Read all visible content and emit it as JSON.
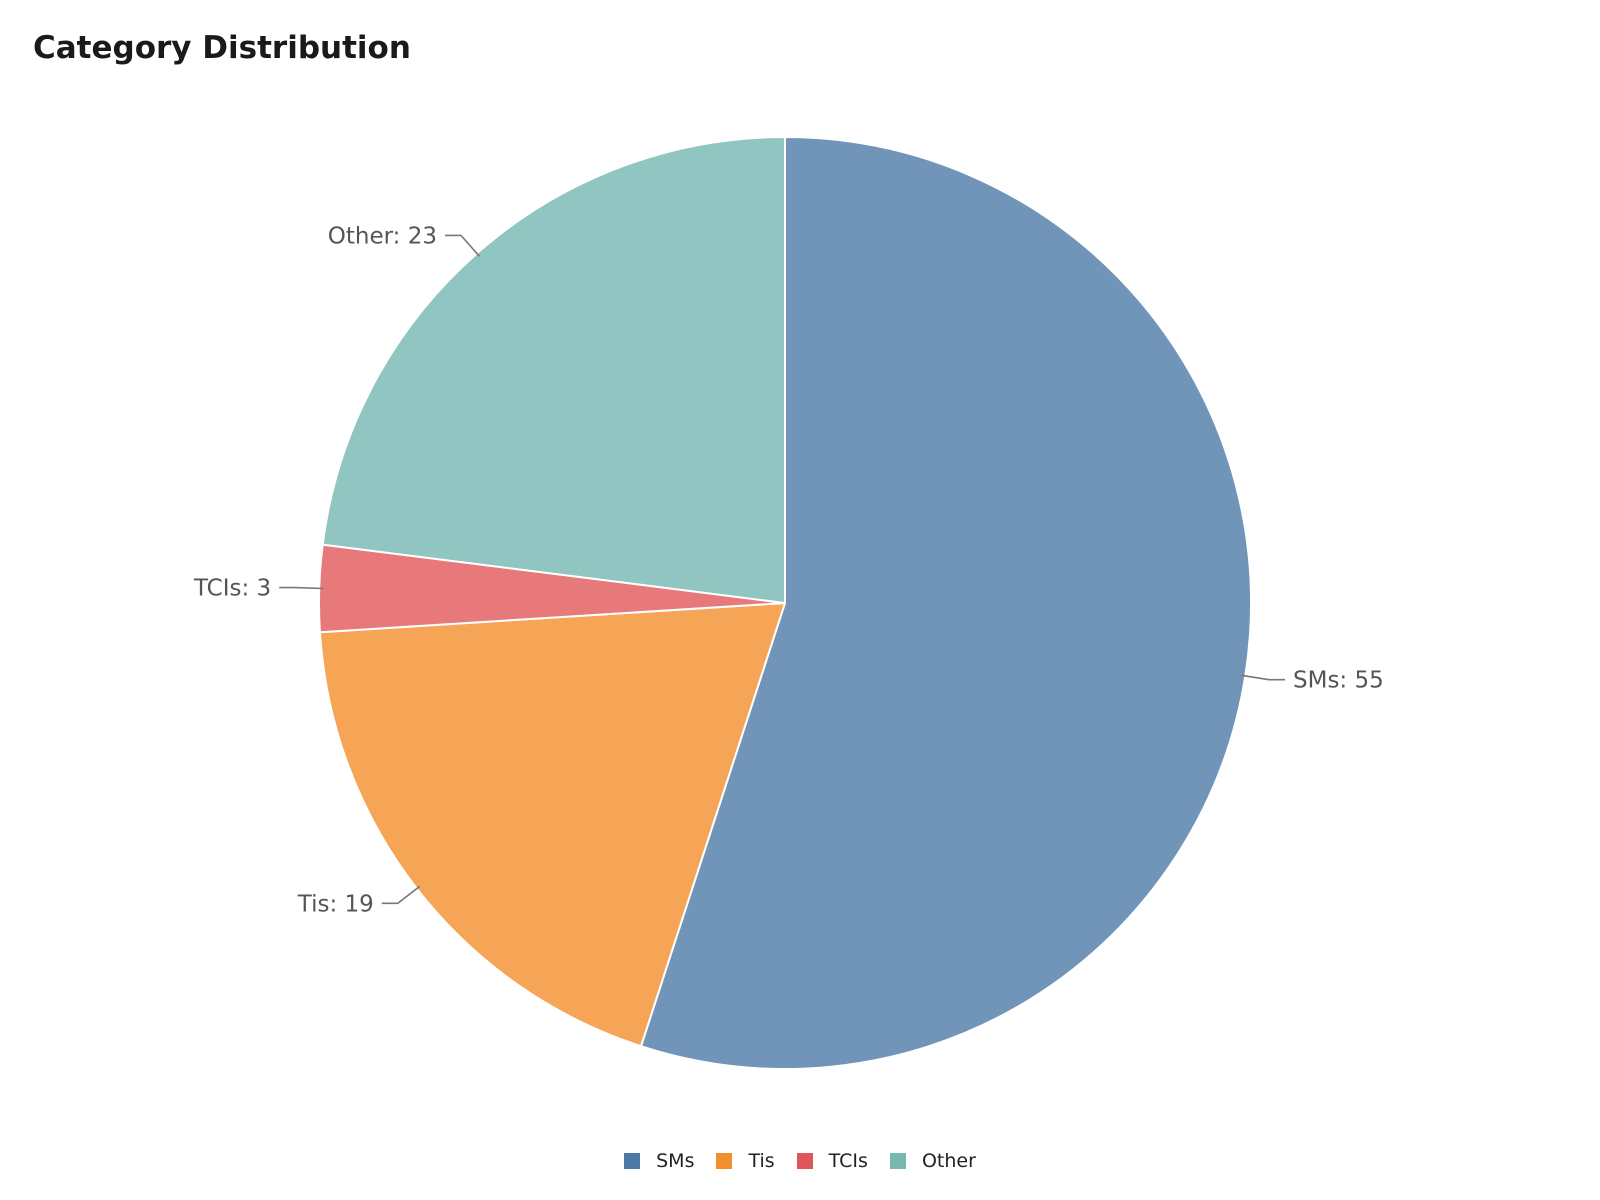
{
  "chart_data": {
    "type": "pie",
    "title": "Category Distribution",
    "start_angle_deg": 90,
    "direction": "clockwise",
    "legend_position": "bottom-center",
    "slices": [
      {
        "label": "SMs",
        "value": 55,
        "display": "SMs: 55",
        "color": "#4e79a7"
      },
      {
        "label": "Tis",
        "value": 19,
        "display": "Tis: 19",
        "color": "#f28e2b"
      },
      {
        "label": "TCIs",
        "value": 3,
        "display": "TCIs: 3",
        "color": "#e15759"
      },
      {
        "label": "Other",
        "value": 23,
        "display": "Other: 23",
        "color": "#76b7b2"
      }
    ]
  }
}
